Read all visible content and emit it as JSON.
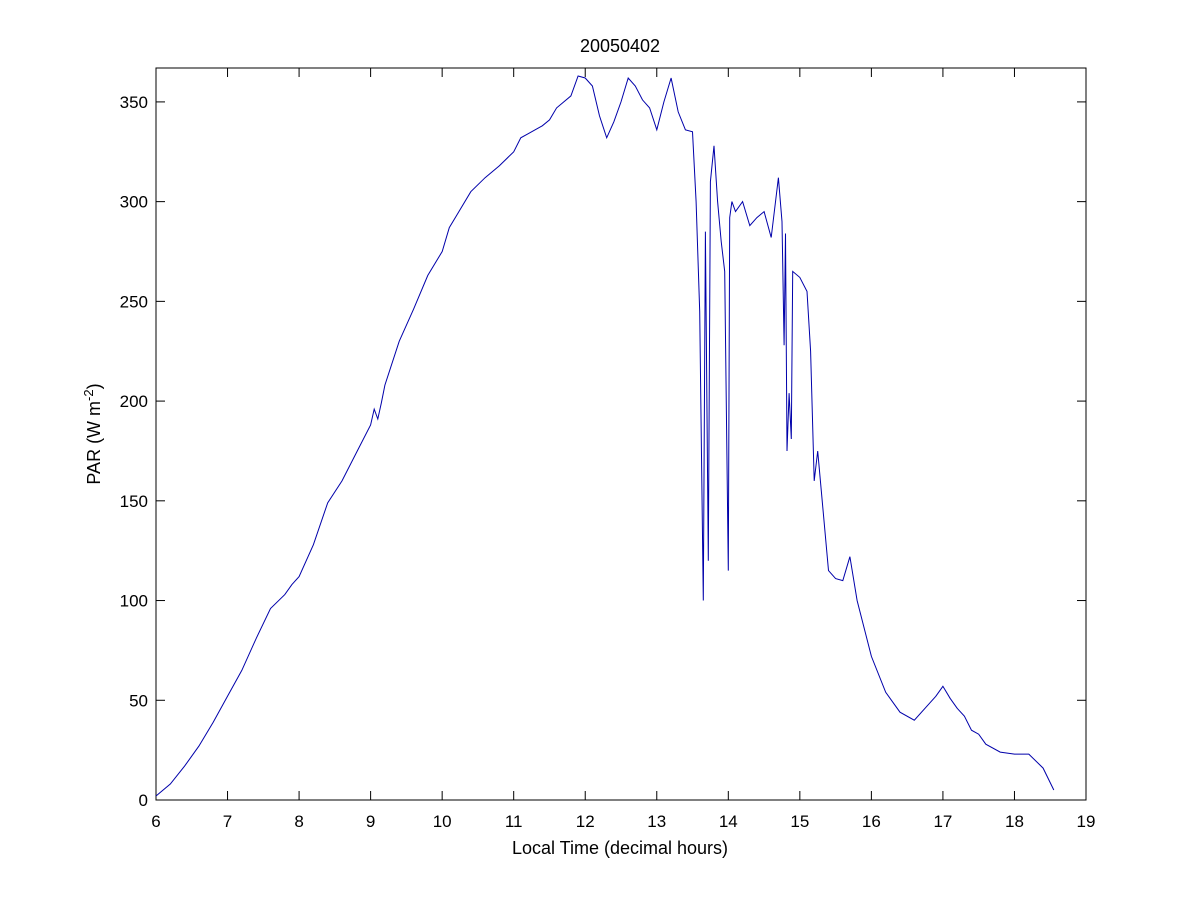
{
  "chart_data": {
    "type": "line",
    "title": "20050402",
    "xlabel": "Local Time (decimal hours)",
    "ylabel": {
      "base": "PAR (W m",
      "superscript": "-2",
      "suffix": ")"
    },
    "xlim": [
      6,
      19
    ],
    "ylim": [
      0,
      367
    ],
    "xticks": [
      6,
      7,
      8,
      9,
      10,
      11,
      12,
      13,
      14,
      15,
      16,
      17,
      18,
      19
    ],
    "yticks": [
      0,
      50,
      100,
      150,
      200,
      250,
      300,
      350
    ],
    "grid": false,
    "line_color": "#0000aa",
    "series": [
      {
        "x": [
          6.0,
          6.2,
          6.4,
          6.6,
          6.8,
          7.0,
          7.2,
          7.4,
          7.6,
          7.8,
          7.9,
          8.0,
          8.2,
          8.4,
          8.6,
          8.8,
          9.0,
          9.05,
          9.1,
          9.15,
          9.2,
          9.4,
          9.6,
          9.8,
          10.0,
          10.1,
          10.2,
          10.4,
          10.6,
          10.8,
          11.0,
          11.1,
          11.2,
          11.4,
          11.5,
          11.6,
          11.8,
          11.9,
          12.0,
          12.1,
          12.2,
          12.3,
          12.4,
          12.5,
          12.6,
          12.7,
          12.8,
          12.9,
          13.0,
          13.1,
          13.2,
          13.3,
          13.4,
          13.5,
          13.55,
          13.6,
          13.65,
          13.68,
          13.72,
          13.75,
          13.8,
          13.85,
          13.9,
          13.95,
          14.0,
          14.02,
          14.05,
          14.1,
          14.2,
          14.3,
          14.4,
          14.5,
          14.6,
          14.7,
          14.75,
          14.78,
          14.8,
          14.82,
          14.85,
          14.88,
          14.9,
          15.0,
          15.1,
          15.15,
          15.2,
          15.25,
          15.3,
          15.4,
          15.5,
          15.6,
          15.7,
          15.8,
          16.0,
          16.2,
          16.4,
          16.6,
          16.8,
          16.9,
          17.0,
          17.1,
          17.2,
          17.3,
          17.4,
          17.5,
          17.6,
          17.8,
          18.0,
          18.1,
          18.2,
          18.4,
          18.55
        ],
        "y": [
          2,
          8,
          17,
          27,
          39,
          52,
          65,
          81,
          96,
          103,
          108,
          112,
          128,
          149,
          160,
          174,
          188,
          196,
          191,
          199,
          208,
          230,
          246,
          263,
          275,
          287,
          293,
          305,
          312,
          318,
          325,
          332,
          334,
          338,
          341,
          347,
          353,
          363,
          362,
          358,
          343,
          332,
          340,
          350,
          362,
          358,
          351,
          347,
          336,
          350,
          362,
          345,
          336,
          335,
          300,
          245,
          100,
          285,
          120,
          310,
          328,
          300,
          280,
          265,
          115,
          292,
          300,
          295,
          300,
          288,
          292,
          295,
          282,
          312,
          290,
          228,
          284,
          175,
          204,
          181,
          265,
          262,
          255,
          225,
          160,
          175,
          155,
          115,
          111,
          110,
          122,
          100,
          72,
          54,
          44,
          40,
          48,
          52,
          57,
          51,
          46,
          42,
          35,
          33,
          28,
          24,
          23,
          23,
          23,
          16,
          5
        ]
      }
    ]
  }
}
